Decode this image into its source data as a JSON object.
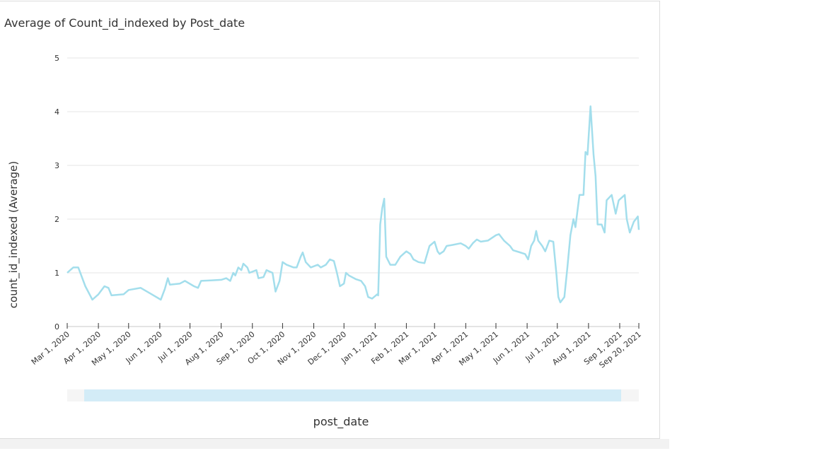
{
  "chart_data": {
    "type": "line",
    "title": "Average of Count_id_indexed by Post_date",
    "x_label": "post_date",
    "y_label": "count_id_indexed (Average)",
    "xlim": [
      "2020-03-01",
      "2021-09-20"
    ],
    "xticks": [
      {
        "value": "2020-03-01",
        "label": "Mar 1, 2020"
      },
      {
        "value": "2020-04-01",
        "label": "Apr 1, 2020"
      },
      {
        "value": "2020-05-01",
        "label": "May 1, 2020"
      },
      {
        "value": "2020-06-01",
        "label": "Jun 1, 2020"
      },
      {
        "value": "2020-07-01",
        "label": "Jul 1, 2020"
      },
      {
        "value": "2020-08-01",
        "label": "Aug 1, 2020"
      },
      {
        "value": "2020-09-01",
        "label": "Sep 1, 2020"
      },
      {
        "value": "2020-10-01",
        "label": "Oct 1, 2020"
      },
      {
        "value": "2020-11-01",
        "label": "Nov 1, 2020"
      },
      {
        "value": "2020-12-01",
        "label": "Dec 1, 2020"
      },
      {
        "value": "2021-01-01",
        "label": "Jan 1, 2021"
      },
      {
        "value": "2021-02-01",
        "label": "Feb 1, 2021"
      },
      {
        "value": "2021-03-01",
        "label": "Mar 1, 2021"
      },
      {
        "value": "2021-04-01",
        "label": "Apr 1, 2021"
      },
      {
        "value": "2021-05-01",
        "label": "May 1, 2021"
      },
      {
        "value": "2021-06-01",
        "label": "Jun 1, 2021"
      },
      {
        "value": "2021-07-01",
        "label": "Jul 1, 2021"
      },
      {
        "value": "2021-08-01",
        "label": "Aug 1, 2021"
      },
      {
        "value": "2021-09-01",
        "label": "Sep 1, 2021"
      },
      {
        "value": "2021-09-20",
        "label": "Sep 20, 2021"
      }
    ],
    "ylim": [
      0,
      5
    ],
    "yticks": [
      0,
      1,
      2,
      3,
      4,
      5
    ],
    "grid": true,
    "x": [
      "2020-03-01",
      "2020-03-07",
      "2020-03-12",
      "2020-03-19",
      "2020-03-26",
      "2020-04-01",
      "2020-04-07",
      "2020-04-11",
      "2020-04-14",
      "2020-04-26",
      "2020-05-01",
      "2020-05-13",
      "2020-05-24",
      "2020-06-02",
      "2020-06-06",
      "2020-06-09",
      "2020-06-11",
      "2020-06-21",
      "2020-06-26",
      "2020-07-05",
      "2020-07-09",
      "2020-07-12",
      "2020-07-23",
      "2020-08-01",
      "2020-08-06",
      "2020-08-10",
      "2020-08-13",
      "2020-08-15",
      "2020-08-18",
      "2020-08-21",
      "2020-08-23",
      "2020-08-27",
      "2020-08-29",
      "2020-09-05",
      "2020-09-07",
      "2020-09-12",
      "2020-09-15",
      "2020-09-21",
      "2020-09-24",
      "2020-09-28",
      "2020-10-01",
      "2020-10-05",
      "2020-10-12",
      "2020-10-15",
      "2020-10-19",
      "2020-10-21",
      "2020-10-24",
      "2020-10-29",
      "2020-11-05",
      "2020-11-08",
      "2020-11-13",
      "2020-11-17",
      "2020-11-21",
      "2020-11-24",
      "2020-11-27",
      "2020-12-01",
      "2020-12-03",
      "2020-12-06",
      "2020-12-13",
      "2020-12-18",
      "2020-12-22",
      "2020-12-25",
      "2020-12-29",
      "2021-01-03",
      "2021-01-04",
      "2021-01-06",
      "2021-01-08",
      "2021-01-10",
      "2021-01-12",
      "2021-01-16",
      "2021-01-21",
      "2021-01-26",
      "2021-02-01",
      "2021-02-05",
      "2021-02-08",
      "2021-02-13",
      "2021-02-19",
      "2021-02-24",
      "2021-03-01",
      "2021-03-04",
      "2021-03-06",
      "2021-03-10",
      "2021-03-13",
      "2021-03-19",
      "2021-03-27",
      "2021-04-01",
      "2021-04-04",
      "2021-04-08",
      "2021-04-12",
      "2021-04-16",
      "2021-04-23",
      "2021-05-01",
      "2021-05-04",
      "2021-05-09",
      "2021-05-15",
      "2021-05-18",
      "2021-05-25",
      "2021-05-30",
      "2021-06-02",
      "2021-06-05",
      "2021-06-08",
      "2021-06-10",
      "2021-06-12",
      "2021-06-16",
      "2021-06-19",
      "2021-06-23",
      "2021-06-27",
      "2021-06-30",
      "2021-07-02",
      "2021-07-04",
      "2021-07-08",
      "2021-07-11",
      "2021-07-14",
      "2021-07-17",
      "2021-07-19",
      "2021-07-23",
      "2021-07-27",
      "2021-07-29",
      "2021-07-31",
      "2021-08-03",
      "2021-08-06",
      "2021-08-08",
      "2021-08-10",
      "2021-08-14",
      "2021-08-17",
      "2021-08-19",
      "2021-08-24",
      "2021-08-28",
      "2021-08-31",
      "2021-09-06",
      "2021-09-08",
      "2021-09-11",
      "2021-09-15",
      "2021-09-19",
      "2021-09-20"
    ],
    "series": [
      {
        "name": "count_id_indexed",
        "color": "#a3deec",
        "values": [
          1.0,
          1.1,
          1.1,
          0.75,
          0.5,
          0.6,
          0.75,
          0.72,
          0.58,
          0.6,
          0.68,
          0.72,
          0.6,
          0.5,
          0.7,
          0.9,
          0.78,
          0.8,
          0.85,
          0.75,
          0.72,
          0.85,
          0.86,
          0.87,
          0.9,
          0.85,
          1.0,
          0.95,
          1.1,
          1.05,
          1.17,
          1.1,
          1.0,
          1.05,
          0.9,
          0.92,
          1.05,
          1.0,
          0.65,
          0.85,
          1.2,
          1.15,
          1.1,
          1.1,
          1.3,
          1.38,
          1.2,
          1.1,
          1.15,
          1.1,
          1.15,
          1.25,
          1.22,
          1.0,
          0.75,
          0.8,
          1.0,
          0.95,
          0.88,
          0.85,
          0.75,
          0.55,
          0.52,
          0.6,
          0.58,
          1.9,
          2.2,
          2.38,
          1.3,
          1.15,
          1.15,
          1.3,
          1.4,
          1.35,
          1.25,
          1.2,
          1.18,
          1.5,
          1.58,
          1.4,
          1.35,
          1.4,
          1.5,
          1.52,
          1.55,
          1.5,
          1.45,
          1.55,
          1.62,
          1.58,
          1.6,
          1.7,
          1.72,
          1.6,
          1.5,
          1.42,
          1.38,
          1.35,
          1.25,
          1.5,
          1.6,
          1.78,
          1.6,
          1.5,
          1.4,
          1.6,
          1.58,
          1.0,
          0.55,
          0.45,
          0.55,
          1.1,
          1.7,
          2.0,
          1.85,
          2.45,
          2.45,
          3.25,
          3.2,
          4.1,
          3.2,
          2.8,
          1.9,
          1.9,
          1.75,
          2.35,
          2.45,
          2.1,
          2.35,
          2.45,
          2.0,
          1.75,
          1.95,
          2.05,
          1.8
        ]
      }
    ]
  }
}
